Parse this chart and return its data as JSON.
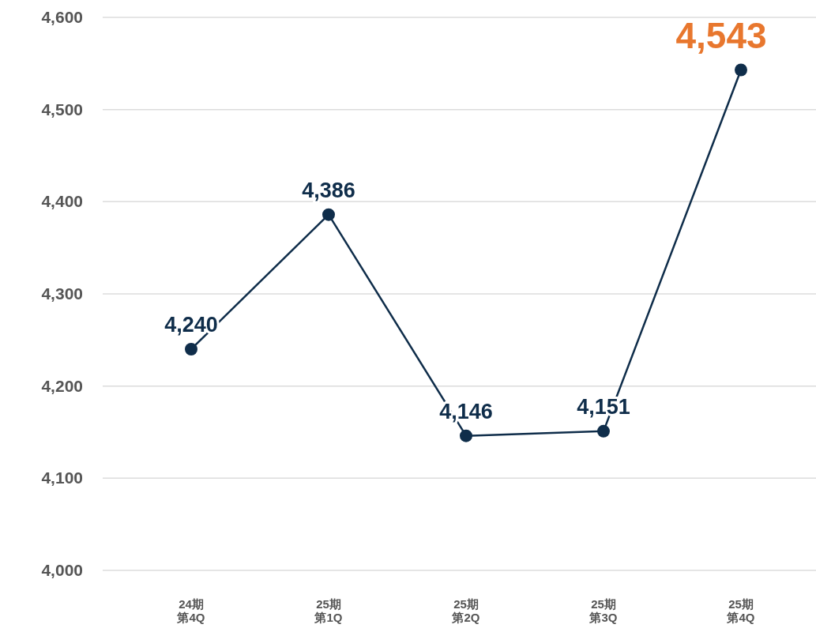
{
  "chart_data": {
    "type": "line",
    "categories": [
      "24期第4Q",
      "25期第1Q",
      "25期第2Q",
      "25期第3Q",
      "25期第4Q"
    ],
    "series": [
      {
        "color": "#0f2d4a",
        "values": [
          4240,
          4386,
          4146,
          4151,
          4543
        ],
        "value_labels": [
          "4,240",
          "4,386",
          "4,146",
          "4,151",
          null
        ]
      }
    ],
    "annotations": [
      {
        "text": "4,543",
        "x": "25期第4Q",
        "y": 4543
      }
    ],
    "ylim": [
      4000,
      4600
    ],
    "yticks": [
      {
        "value": 4000,
        "label": "4,000"
      },
      {
        "value": 4100,
        "label": "4,100"
      },
      {
        "value": 4200,
        "label": "4,200"
      },
      {
        "value": 4300,
        "label": "4,300"
      },
      {
        "value": 4400,
        "label": "4,400"
      },
      {
        "value": 4500,
        "label": "4,500"
      },
      {
        "value": 4600,
        "label": "4,600"
      }
    ],
    "grid": "y",
    "marker": "circle",
    "line_style": "solid"
  }
}
